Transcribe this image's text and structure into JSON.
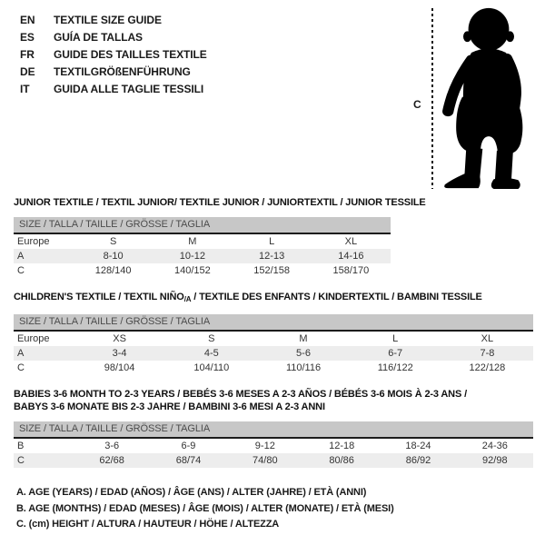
{
  "languages": [
    {
      "code": "EN",
      "label": "TEXTILE SIZE GUIDE"
    },
    {
      "code": "ES",
      "label": "GUÍA DE TALLAS"
    },
    {
      "code": "FR",
      "label": "GUIDE DES TAILLES TEXTILE"
    },
    {
      "code": "DE",
      "label": "TEXTILGRÖßENFÜHRUNG"
    },
    {
      "code": "IT",
      "label": "GUIDA ALLE TAGLIE TESSILI"
    }
  ],
  "figure": {
    "measure_label": "C",
    "icon": "baby-silhouette"
  },
  "colors": {
    "header_bar_bg": "#c7c7c7",
    "header_bar_text": "#4c4c4c",
    "zebra_row_bg": "#ededed",
    "rule_line": "#1c1c1c",
    "text": "#1a1a1a"
  },
  "tables": [
    {
      "title_lines": [
        [
          {
            "t": "JUNIOR TEXTILE / TEXTIL JUNIOR/ TEXTILE JUNIOR / JUNIORTEXTIL / JUNIOR TESSILE"
          }
        ]
      ],
      "size_header": "SIZE / TALLA / TAILLE / GRÖSSE / TAGLIA",
      "rows": [
        {
          "label": "Europe",
          "values": [
            "S",
            "M",
            "L",
            "XL"
          ]
        },
        {
          "label": "A",
          "values": [
            "8-10",
            "10-12",
            "12-13",
            "14-16"
          ]
        },
        {
          "label": "C",
          "values": [
            "128/140",
            "140/152",
            "152/158",
            "158/170"
          ]
        }
      ]
    },
    {
      "title_lines": [
        [
          {
            "t": "CHILDREN'S TEXTILE / TEXTIL NIÑO"
          },
          {
            "t": "/A",
            "sub": true
          },
          {
            "t": " / TEXTILE DES ENFANTS / KINDERTEXTIL / BAMBINI TESSILE"
          }
        ]
      ],
      "size_header": "SIZE / TALLA / TAILLE / GRÖSSE / TAGLIA",
      "rows": [
        {
          "label": "Europe",
          "values": [
            "XS",
            "S",
            "M",
            "L",
            "XL"
          ]
        },
        {
          "label": "A",
          "values": [
            "3-4",
            "4-5",
            "5-6",
            "6-7",
            "7-8"
          ]
        },
        {
          "label": "C",
          "values": [
            "98/104",
            "104/110",
            "110/116",
            "116/122",
            "122/128"
          ]
        }
      ]
    },
    {
      "title_lines": [
        [
          {
            "t": "BABIES 3-6 MONTH TO 2-3 YEARS / BEBÉS 3-6 MESES A 2-3 AÑOS / BÉBÉS 3-6 MOIS À 2-3 ANS /"
          }
        ],
        [
          {
            "t": "BABYS 3-6 MONATE BIS 2-3 JAHRE / BAMBINI 3-6 MESI A 2-3 ANNI"
          }
        ]
      ],
      "size_header": "SIZE / TALLA / TAILLE / GRÖSSE / TAGLIA",
      "rows": [
        {
          "label": "B",
          "values": [
            "3-6",
            "6-9",
            "9-12",
            "12-18",
            "18-24",
            "24-36"
          ]
        },
        {
          "label": "C",
          "values": [
            "62/68",
            "68/74",
            "74/80",
            "80/86",
            "86/92",
            "92/98"
          ]
        }
      ]
    }
  ],
  "legend": [
    "A. AGE (YEARS) / EDAD (AÑOS) / ÂGE (ANS) / ALTER (JAHRE) / ETÀ (ANNI)",
    "B. AGE (MONTHS) / EDAD (MESES) / ÂGE (MOIS) / ALTER (MONATE) / ETÀ (MESI)",
    "C. (cm) HEIGHT / ALTURA / HAUTEUR / HÖHE / ALTEZZA"
  ]
}
